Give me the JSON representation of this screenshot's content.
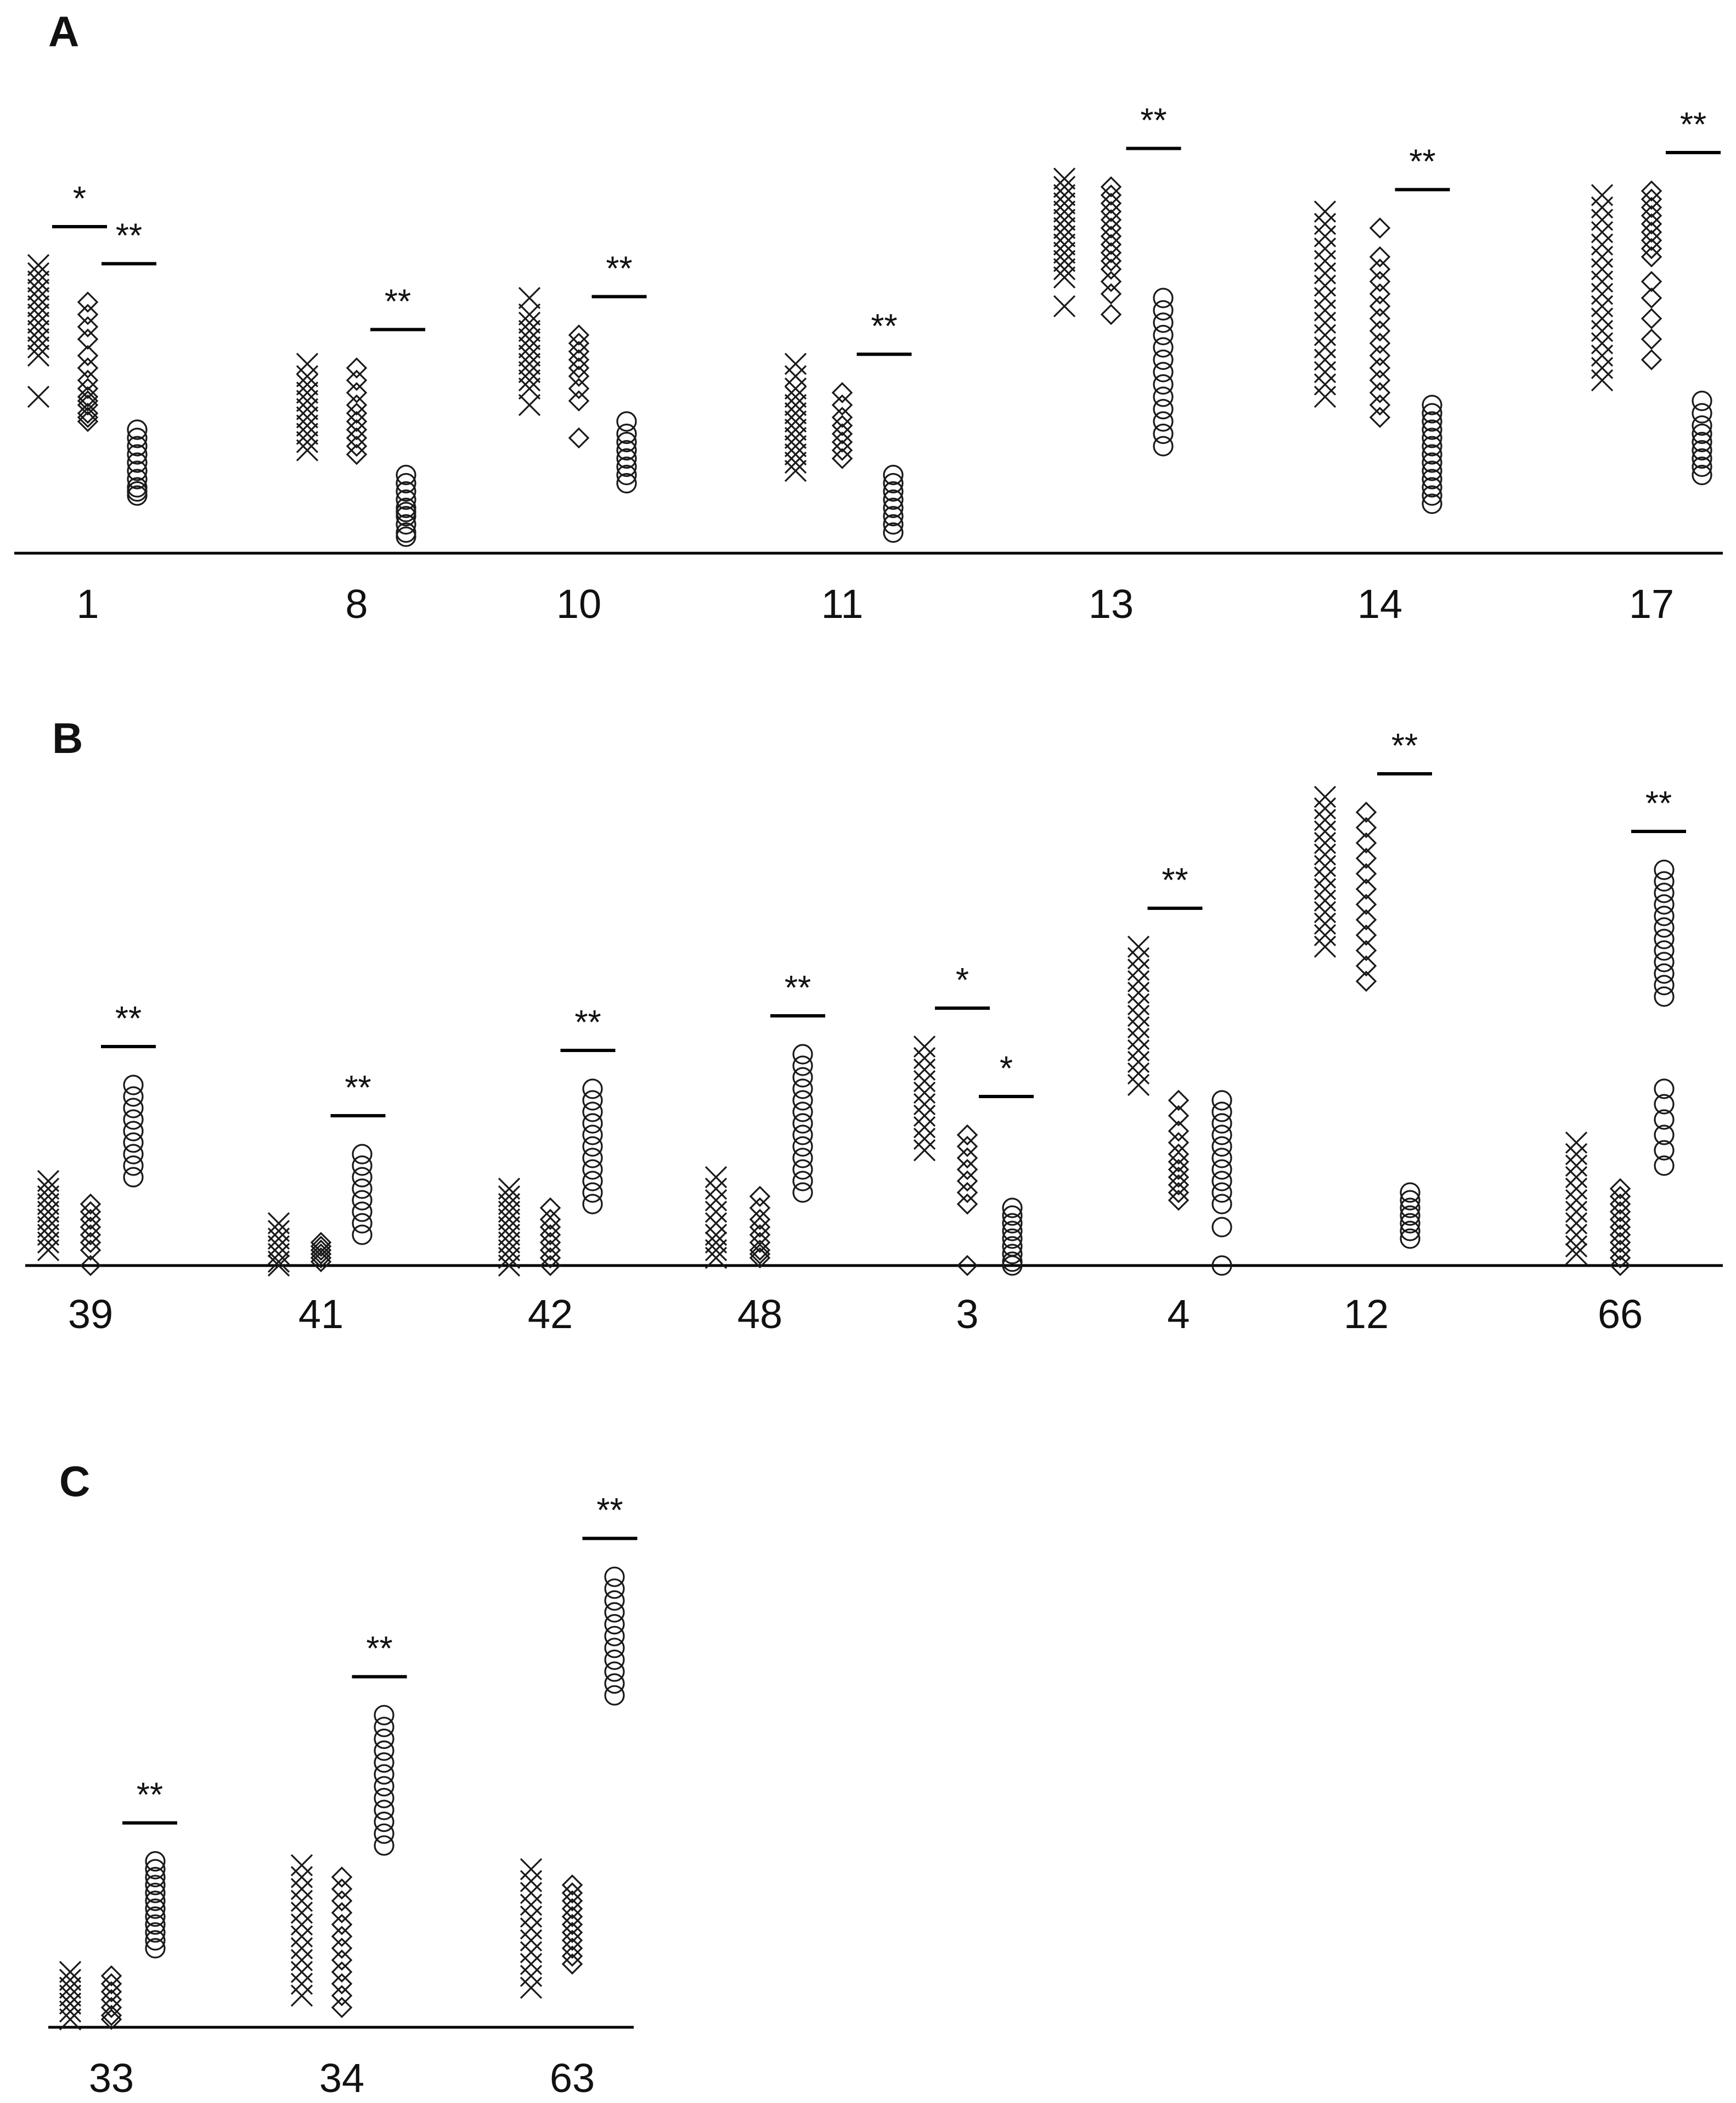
{
  "chart_data": [
    {
      "type": "scatter",
      "panel": "A",
      "series_names": [
        "x-markers",
        "diamond-markers",
        "circle-markers"
      ],
      "y_units": "relative (0 = x-axis, 100 = panel top)",
      "groups": [
        {
          "label": "1",
          "x": [
            [
              70,
              68,
              66,
              64,
              62,
              60,
              58,
              56,
              54,
              52,
              50,
              48,
              38
            ],
            [
              61,
              58,
              55,
              52,
              48,
              45,
              42,
              40,
              38,
              37,
              36,
              34,
              33,
              32
            ],
            [
              30,
              28,
              26,
              24,
              22,
              20,
              18,
              16,
              15,
              14
            ]
          ],
          "sig": [
            {
              "text": "*",
              "between": [
                0,
                1
              ]
            },
            {
              "text": "**",
              "between": [
                1,
                2
              ]
            }
          ]
        },
        {
          "label": "8",
          "x": [
            [
              46,
              43,
              41,
              39,
              37,
              35,
              33,
              31,
              29,
              27,
              25
            ],
            [
              45,
              42,
              39,
              36,
              34,
              32,
              30,
              28,
              26,
              24
            ],
            [
              19,
              17,
              15,
              13,
              11,
              10,
              9,
              7,
              5,
              4
            ]
          ],
          "sig": [
            {
              "text": "**",
              "between": [
                1,
                2
              ]
            }
          ]
        },
        {
          "label": "10",
          "x": [
            [
              62,
              58,
              56,
              54,
              52,
              50,
              48,
              46,
              44,
              42,
              40,
              36
            ],
            [
              53,
              51,
              49,
              47,
              45,
              43,
              40,
              37,
              28
            ],
            [
              32,
              29,
              27,
              25,
              23,
              21,
              19,
              17
            ]
          ],
          "sig": [
            {
              "text": "**",
              "between": [
                1,
                2
              ]
            }
          ]
        },
        {
          "label": "11",
          "x": [
            [
              46,
              43,
              40,
              38,
              36,
              34,
              32,
              30,
              28,
              26,
              24,
              22,
              20
            ],
            [
              39,
              36,
              33,
              31,
              29,
              27,
              25,
              23
            ],
            [
              19,
              17,
              15,
              13,
              11,
              9,
              7,
              5
            ]
          ],
          "sig": [
            {
              "text": "**",
              "between": [
                1,
                2
              ]
            }
          ]
        },
        {
          "label": "13",
          "x": [
            [
              91,
              89,
              87,
              85,
              83,
              81,
              79,
              77,
              75,
              73,
              71,
              69,
              67,
              60
            ],
            [
              89,
              87,
              85,
              83,
              81,
              79,
              77,
              75,
              73,
              71,
              69,
              66,
              63,
              58
            ],
            [
              62,
              59,
              56,
              53,
              50,
              47,
              44,
              41,
              38,
              35,
              32,
              29,
              26
            ]
          ],
          "sig": [
            {
              "text": "**",
              "between": [
                1,
                2
              ]
            }
          ]
        },
        {
          "label": "14",
          "x": [
            [
              83,
              80,
              77,
              74,
              71,
              68,
              65,
              62,
              59,
              56,
              53,
              50,
              47,
              44,
              41,
              38
            ],
            [
              79,
              72,
              69,
              66,
              63,
              60,
              57,
              54,
              51,
              48,
              45,
              42,
              39,
              36,
              33
            ],
            [
              36,
              34,
              32,
              30,
              28,
              26,
              24,
              22,
              20,
              18,
              16,
              14,
              12
            ]
          ],
          "sig": [
            {
              "text": "**",
              "between": [
                1,
                2
              ]
            }
          ]
        },
        {
          "label": "17",
          "x": [
            [
              87,
              84,
              81,
              78,
              75,
              72,
              69,
              66,
              63,
              60,
              57,
              54,
              51,
              48,
              45,
              42
            ],
            [
              88,
              86,
              84,
              82,
              80,
              78,
              76,
              74,
              72,
              66,
              62,
              57,
              52,
              47
            ],
            [
              37,
              34,
              31,
              29,
              27,
              25,
              23,
              21,
              19
            ]
          ],
          "sig": [
            {
              "text": "**",
              "between": [
                1,
                2
              ]
            }
          ]
        }
      ]
    },
    {
      "type": "scatter",
      "panel": "B",
      "series_names": [
        "x-markers",
        "diamond-markers",
        "circle-markers"
      ],
      "y_units": "relative (0 = x-axis, 100 = panel top)",
      "groups": [
        {
          "label": "39",
          "x": [
            [
              22,
              20,
              18,
              16,
              14,
              12,
              10,
              8,
              6,
              4
            ],
            [
              16,
              14,
              12,
              10,
              8,
              6,
              4,
              0
            ],
            [
              47,
              44,
              41,
              38,
              35,
              32,
              29,
              26,
              23
            ]
          ],
          "sig": [
            {
              "text": "**",
              "between": [
                1,
                2
              ]
            }
          ]
        },
        {
          "label": "41",
          "x": [
            [
              11,
              9,
              7,
              5,
              3,
              1,
              0
            ],
            [
              6,
              5,
              4,
              3,
              2,
              1
            ],
            [
              29,
              26,
              23,
              20,
              17,
              14,
              11,
              8
            ]
          ],
          "sig": [
            {
              "text": "**",
              "between": [
                1,
                2
              ]
            }
          ]
        },
        {
          "label": "42",
          "x": [
            [
              20,
              18,
              16,
              14,
              12,
              10,
              8,
              6,
              4,
              2,
              0
            ],
            [
              15,
              12,
              10,
              8,
              6,
              4,
              2,
              0
            ],
            [
              46,
              43,
              40,
              37,
              34,
              31,
              28,
              25,
              22,
              19,
              16
            ]
          ],
          "sig": [
            {
              "text": "**",
              "between": [
                1,
                2
              ]
            }
          ]
        },
        {
          "label": "48",
          "x": [
            [
              23,
              20,
              17,
              14,
              11,
              8,
              6,
              4,
              2
            ],
            [
              18,
              15,
              12,
              10,
              8,
              6,
              4,
              3,
              2
            ],
            [
              55,
              52,
              49,
              46,
              43,
              40,
              37,
              34,
              31,
              28,
              25,
              22,
              19
            ]
          ],
          "sig": [
            {
              "text": "**",
              "between": [
                1,
                2
              ]
            }
          ]
        },
        {
          "label": "3",
          "x": [
            [
              57,
              54,
              51,
              48,
              45,
              42,
              39,
              36,
              33,
              30
            ],
            [
              34,
              31,
              28,
              25,
              22,
              19,
              16,
              0
            ],
            [
              15,
              13,
              11,
              9,
              7,
              5,
              3,
              1,
              0
            ]
          ],
          "sig": [
            {
              "text": "*",
              "between": [
                0,
                1
              ]
            },
            {
              "text": "*",
              "between": [
                1,
                2
              ]
            }
          ]
        },
        {
          "label": "4",
          "x": [
            [
              83,
              80,
              77,
              74,
              71,
              68,
              65,
              62,
              59,
              56,
              53,
              50,
              47
            ],
            [
              43,
              39,
              35,
              32,
              29,
              27,
              25,
              23,
              21,
              19,
              17
            ],
            [
              43,
              40,
              37,
              34,
              31,
              28,
              25,
              22,
              19,
              16,
              10,
              0
            ]
          ],
          "sig": [
            {
              "text": "**",
              "between": [
                0,
                1
              ]
            }
          ]
        },
        {
          "label": "12",
          "x": [
            [
              122,
              119,
              116,
              113,
              110,
              107,
              104,
              101,
              98,
              95,
              92,
              89,
              86,
              83
            ],
            [
              118,
              114,
              110,
              106,
              102,
              98,
              94,
              90,
              86,
              82,
              78,
              74
            ],
            [
              19,
              17,
              15,
              13,
              11,
              9,
              7
            ]
          ],
          "sig": [
            {
              "text": "**",
              "between": [
                1,
                2
              ]
            }
          ]
        },
        {
          "label": "66",
          "x": [
            [
              32,
              29,
              26,
              23,
              20,
              17,
              14,
              11,
              8,
              5,
              3
            ],
            [
              20,
              18,
              16,
              14,
              12,
              10,
              8,
              6,
              4,
              2,
              0
            ],
            [
              103,
              100,
              97,
              94,
              91,
              88,
              85,
              82,
              79,
              76,
              73,
              70,
              46,
              42,
              38,
              34,
              30,
              26
            ]
          ],
          "sig": [
            {
              "text": "**",
              "between": [
                1,
                2
              ]
            }
          ]
        }
      ]
    },
    {
      "type": "scatter",
      "panel": "C",
      "series_names": [
        "x-markers",
        "diamond-markers",
        "circle-markers"
      ],
      "y_units": "relative (0 = x-axis, 100 = panel top)",
      "groups": [
        {
          "label": "33",
          "x": [
            [
              14,
              12,
              10,
              8,
              6,
              4,
              2
            ],
            [
              13,
              11,
              9,
              7,
              5,
              3,
              2
            ],
            [
              42,
              40,
              38,
              36,
              34,
              32,
              30,
              28,
              26,
              24,
              22,
              20
            ]
          ],
          "sig": [
            {
              "text": "**",
              "between": [
                1,
                2
              ]
            }
          ]
        },
        {
          "label": "34",
          "x": [
            [
              41,
              38,
              35,
              32,
              29,
              26,
              23,
              20,
              17,
              14,
              11,
              8
            ],
            [
              38,
              35,
              32,
              29,
              26,
              23,
              20,
              17,
              14,
              11,
              8,
              5
            ],
            [
              79,
              76,
              73,
              70,
              67,
              64,
              61,
              58,
              55,
              52,
              49,
              46
            ]
          ],
          "sig": [
            {
              "text": "**",
              "between": [
                1,
                2
              ]
            }
          ]
        },
        {
          "label": "63",
          "x": [
            [
              40,
              37,
              34,
              31,
              28,
              25,
              22,
              19,
              16,
              13,
              10
            ],
            [
              36,
              34,
              32,
              30,
              28,
              26,
              24,
              22,
              20,
              18,
              16
            ],
            [
              114,
              111,
              108,
              105,
              102,
              99,
              96,
              93,
              90,
              87,
              84
            ]
          ],
          "sig": [
            {
              "text": "**",
              "between": [
                1,
                2
              ]
            }
          ]
        }
      ]
    }
  ],
  "panels": [
    {
      "letter": "A"
    },
    {
      "letter": "B"
    },
    {
      "letter": "C"
    }
  ],
  "colors": {
    "marker": "#1a1a1a",
    "axis": "#000000",
    "background": "#ffffff"
  }
}
